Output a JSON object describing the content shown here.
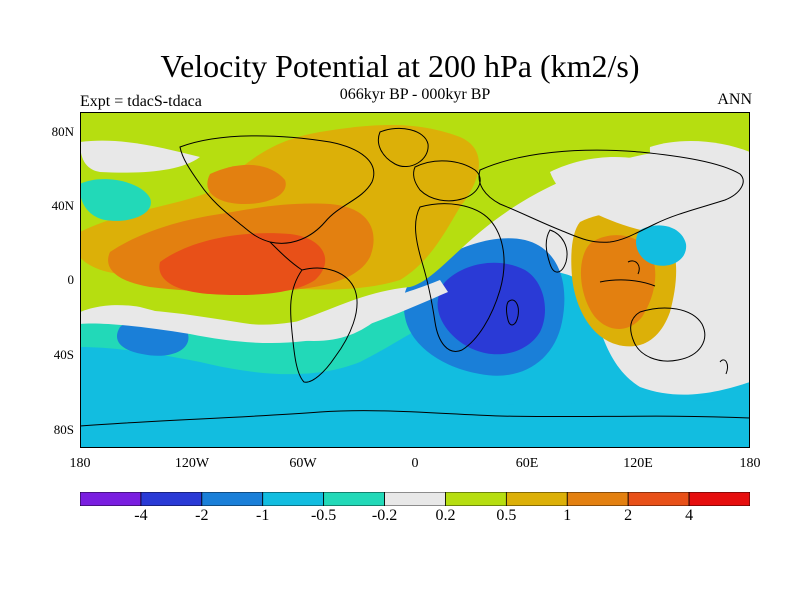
{
  "title": "Velocity Potential at 200 hPa (km2/s)",
  "subtitle": "066kyr BP - 000kyr BP",
  "left_label": "Expt = tdacS-tdaca",
  "right_label": "ANN",
  "lat_labels": [
    "80N",
    "40N",
    "0",
    "40S",
    "80S"
  ],
  "lon_labels": [
    "180",
    "120W",
    "60W",
    "0",
    "60E",
    "120E",
    "180"
  ],
  "colorbar": {
    "colors": [
      "#7a1ee0",
      "#2a3ad6",
      "#1a7fd8",
      "#12bde0",
      "#22d9b8",
      "#e8e8e8",
      "#b6de10",
      "#dcb008",
      "#e38010",
      "#e85018",
      "#e60e0e"
    ],
    "labels": [
      "-4",
      "-2",
      "-1",
      "-0.5",
      "-0.2",
      "0.2",
      "0.5",
      "1",
      "2",
      "4"
    ]
  },
  "map_colors": {
    "land_outline": "#000000",
    "neutral": "#e8e8e8",
    "weak_positive": "#b6de10",
    "moderate_positive": "#dcb008",
    "strong_positive": "#e38010",
    "very_strong_positive": "#e85018",
    "weak_negative": "#22d9b8",
    "moderate_negative": "#12bde0",
    "strong_negative": "#1a7fd8",
    "very_strong_negative": "#2a3ad6"
  }
}
